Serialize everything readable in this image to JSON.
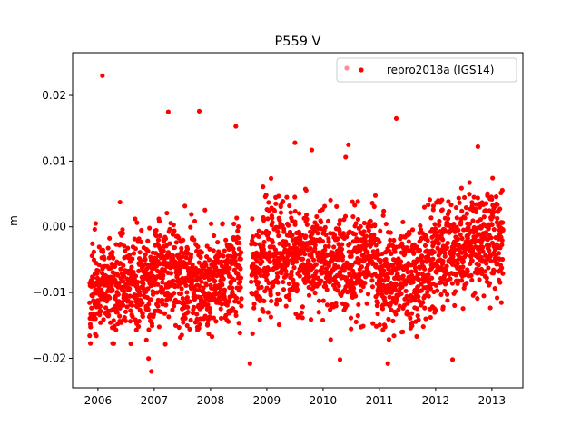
{
  "chart_data": {
    "type": "scatter",
    "title": "P559 V",
    "xlabel": "",
    "ylabel": "m",
    "xlim": [
      2005.55,
      2013.55
    ],
    "ylim": [
      -0.0245,
      0.0265
    ],
    "x_ticks": [
      2006,
      2007,
      2008,
      2009,
      2010,
      2011,
      2012,
      2013
    ],
    "x_tick_labels": [
      "2006",
      "2007",
      "2008",
      "2009",
      "2010",
      "2011",
      "2012",
      "2013"
    ],
    "y_ticks": [
      -0.02,
      -0.01,
      0.0,
      0.01,
      0.02
    ],
    "y_tick_labels": [
      "−0.02",
      "−0.01",
      "0.00",
      "0.01",
      "0.02"
    ],
    "grid": false,
    "legend_position": "top-right",
    "series": [
      {
        "name": "repro2018a (IGS14)",
        "color": "#ff0000",
        "marker": "circle",
        "x_range": [
          2005.85,
          2013.2
        ],
        "trend_knots": {
          "x": [
            2005.85,
            2006.4,
            2007.0,
            2007.4,
            2007.9,
            2008.4,
            2008.7,
            2009.3,
            2009.8,
            2010.3,
            2010.9,
            2011.0,
            2011.6,
            2012.1,
            2012.7,
            2013.2
          ],
          "y": [
            -0.01,
            -0.009,
            -0.008,
            -0.006,
            -0.01,
            -0.007,
            -0.006,
            -0.004,
            -0.005,
            -0.006,
            -0.004,
            -0.008,
            -0.008,
            -0.004,
            -0.002,
            -0.002
          ]
        },
        "scatter_std": 0.0038,
        "highlights": {
          "x": [
            2006.08,
            2007.25,
            2007.8,
            2008.45,
            2011.3,
            2012.75,
            2009.5,
            2009.8,
            2010.45,
            2006.95,
            2008.7,
            2010.3,
            2011.15,
            2012.3
          ],
          "y": [
            0.023,
            0.0175,
            0.0176,
            0.0153,
            0.0165,
            0.0122,
            0.0128,
            0.0117,
            0.0125,
            -0.022,
            -0.0208,
            -0.0202,
            -0.0208,
            -0.0202
          ]
        }
      }
    ]
  }
}
